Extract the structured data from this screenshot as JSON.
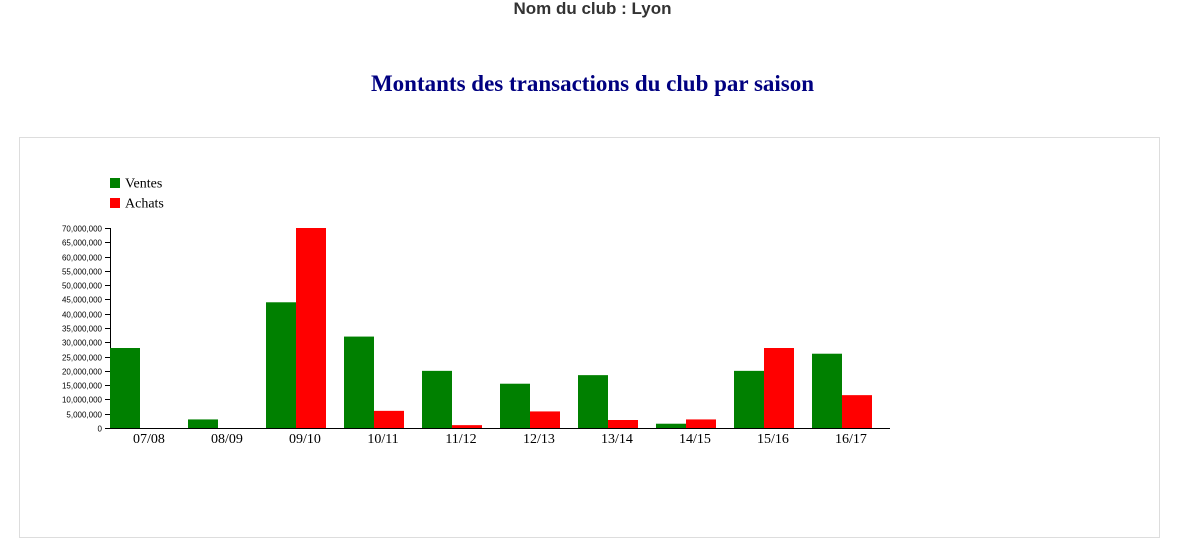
{
  "header": {
    "club_name": "Nom du club : Lyon"
  },
  "chart_data": {
    "type": "bar",
    "title": "Montants des transactions du club par saison",
    "xlabel": "",
    "ylabel": "",
    "ylim": [
      0,
      70000000
    ],
    "yticks": [
      0,
      5000000,
      10000000,
      15000000,
      20000000,
      25000000,
      30000000,
      35000000,
      40000000,
      45000000,
      50000000,
      55000000,
      60000000,
      65000000,
      70000000
    ],
    "ytick_labels": [
      "0",
      "5,000,000",
      "10,000,000",
      "15,000,000",
      "20,000,000",
      "25,000,000",
      "30,000,000",
      "35,000,000",
      "40,000,000",
      "45,000,000",
      "50,000,000",
      "55,000,000",
      "60,000,000",
      "65,000,000",
      "70,000,000"
    ],
    "categories": [
      "07/08",
      "08/09",
      "09/10",
      "10/11",
      "11/12",
      "12/13",
      "13/14",
      "14/15",
      "15/16",
      "16/17"
    ],
    "series": [
      {
        "name": "Ventes",
        "color": "#008000",
        "values": [
          28000000,
          3000000,
          44000000,
          32000000,
          20000000,
          15500000,
          18500000,
          1500000,
          20000000,
          26000000
        ]
      },
      {
        "name": "Achats",
        "color": "#ff0000",
        "values": [
          0,
          0,
          70000000,
          6000000,
          1000000,
          5800000,
          2800000,
          3000000,
          28000000,
          11500000
        ]
      }
    ],
    "legend_position": "top-left",
    "grid": false
  }
}
